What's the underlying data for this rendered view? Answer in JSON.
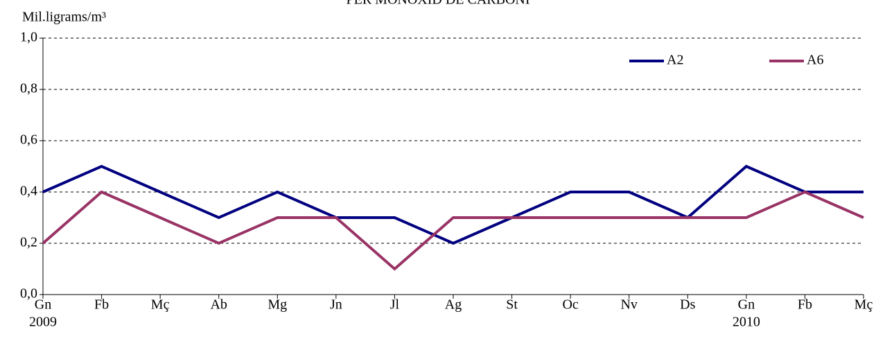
{
  "chart_data": {
    "type": "line",
    "title": "PER MONOXID DE CARBONI",
    "y_label": "Mil.ligrams/m³",
    "categories": [
      "Gn",
      "Fb",
      "Mç",
      "Ab",
      "Mg",
      "Jn",
      "Jl",
      "Ag",
      "St",
      "Oc",
      "Nv",
      "Ds",
      "Gn",
      "Fb",
      "Mç"
    ],
    "years": [
      "2009",
      null,
      null,
      null,
      null,
      null,
      null,
      null,
      null,
      null,
      null,
      null,
      "2010",
      null,
      null
    ],
    "series": [
      {
        "name": "A2",
        "color": "#000080",
        "values": [
          0.4,
          0.5,
          0.4,
          0.3,
          0.4,
          0.3,
          0.3,
          0.2,
          0.3,
          0.4,
          0.4,
          0.3,
          0.5,
          0.4,
          0.4
        ]
      },
      {
        "name": "A6",
        "color": "#993366",
        "values": [
          0.2,
          0.4,
          0.3,
          0.2,
          0.3,
          0.3,
          0.1,
          0.3,
          0.3,
          0.3,
          0.3,
          0.3,
          0.3,
          0.4,
          0.3
        ]
      }
    ],
    "ylim": [
      0,
      1
    ],
    "yticks": [
      {
        "value": 0,
        "label": "0,0"
      },
      {
        "value": 0.2,
        "label": "0,2"
      },
      {
        "value": 0.4,
        "label": "0,4"
      },
      {
        "value": 0.6,
        "label": "0,6"
      },
      {
        "value": 0.8,
        "label": "0,8"
      },
      {
        "value": 1,
        "label": "1,0"
      }
    ],
    "grid": true,
    "legend": "top-right"
  }
}
